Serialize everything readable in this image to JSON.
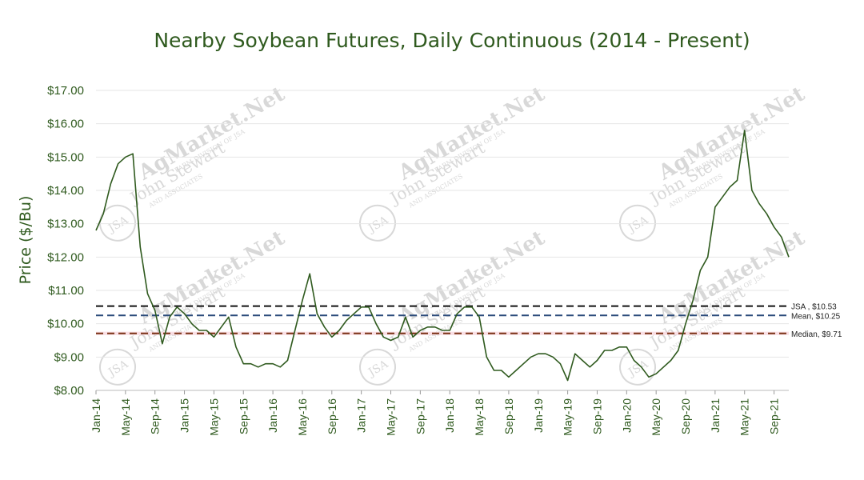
{
  "colors": {
    "title": "#2f5a1e",
    "line": "#2f5a1e",
    "grid": "#e6e6e6",
    "jsa": "#111111",
    "mean": "#2a4a7a",
    "median": "#7a3316",
    "median_band": "#f5c4cf",
    "watermark": "#d8d8d8"
  },
  "watermark": {
    "brand": "AgMarket.Net",
    "firm": "John Stewart",
    "firm_sub": "AND ASSOCIATES",
    "division": "FARM DIVISION OF JSA",
    "seal": "JSA"
  },
  "chart_data": {
    "type": "line",
    "title": "Nearby Soybean Futures, Daily Continuous (2014 - Present)",
    "xlabel": "",
    "ylabel": "Price ($/Bu)",
    "ylim": [
      8,
      17
    ],
    "y_ticks": [
      8,
      9,
      10,
      11,
      12,
      13,
      14,
      15,
      16,
      17
    ],
    "y_tick_labels": [
      "$8.00",
      "$9.00",
      "$10.00",
      "$11.00",
      "$12.00",
      "$13.00",
      "$14.00",
      "$15.00",
      "$16.00",
      "$17.00"
    ],
    "x_range": [
      "2014-01",
      "2021-11"
    ],
    "x_tick_labels": [
      "Jan-14",
      "May-14",
      "Sep-14",
      "Jan-15",
      "May-15",
      "Sep-15",
      "Jan-16",
      "May-16",
      "Sep-16",
      "Jan-17",
      "May-17",
      "Sep-17",
      "Jan-18",
      "May-18",
      "Sep-18",
      "Jan-19",
      "May-19",
      "Sep-19",
      "Jan-20",
      "May-20",
      "Sep-20",
      "Jan-21",
      "May-21",
      "Sep-21"
    ],
    "grid": "horizontal",
    "reference_lines": [
      {
        "label": "JSA , $10.53",
        "value": 10.53,
        "style": "dashed"
      },
      {
        "label": "Mean, $10.25",
        "value": 10.25,
        "style": "dashed"
      },
      {
        "label": "Median, $9.71",
        "value": 9.71,
        "style": "dashed"
      }
    ],
    "series": [
      {
        "x": [
          "2014-01",
          "2014-02",
          "2014-03",
          "2014-04",
          "2014-05",
          "2014-06",
          "2014-07",
          "2014-08",
          "2014-09",
          "2014-10",
          "2014-11",
          "2014-12",
          "2015-01",
          "2015-02",
          "2015-03",
          "2015-04",
          "2015-05",
          "2015-06",
          "2015-07",
          "2015-08",
          "2015-09",
          "2015-10",
          "2015-11",
          "2015-12",
          "2016-01",
          "2016-02",
          "2016-03",
          "2016-04",
          "2016-05",
          "2016-06",
          "2016-07",
          "2016-08",
          "2016-09",
          "2016-10",
          "2016-11",
          "2016-12",
          "2017-01",
          "2017-02",
          "2017-03",
          "2017-04",
          "2017-05",
          "2017-06",
          "2017-07",
          "2017-08",
          "2017-09",
          "2017-10",
          "2017-11",
          "2017-12",
          "2018-01",
          "2018-02",
          "2018-03",
          "2018-04",
          "2018-05",
          "2018-06",
          "2018-07",
          "2018-08",
          "2018-09",
          "2018-10",
          "2018-11",
          "2018-12",
          "2019-01",
          "2019-02",
          "2019-03",
          "2019-04",
          "2019-05",
          "2019-06",
          "2019-07",
          "2019-08",
          "2019-09",
          "2019-10",
          "2019-11",
          "2019-12",
          "2020-01",
          "2020-02",
          "2020-03",
          "2020-04",
          "2020-05",
          "2020-06",
          "2020-07",
          "2020-08",
          "2020-09",
          "2020-10",
          "2020-11",
          "2020-12",
          "2021-01",
          "2021-02",
          "2021-03",
          "2021-04",
          "2021-05",
          "2021-06",
          "2021-07",
          "2021-08",
          "2021-09",
          "2021-10",
          "2021-11"
        ],
        "values": [
          12.8,
          13.3,
          14.2,
          14.8,
          15.0,
          15.1,
          12.3,
          10.9,
          10.4,
          9.4,
          10.2,
          10.5,
          10.3,
          10.0,
          9.8,
          9.8,
          9.6,
          9.9,
          10.2,
          9.3,
          8.8,
          8.8,
          8.7,
          8.8,
          8.8,
          8.7,
          8.9,
          9.8,
          10.7,
          11.5,
          10.3,
          9.9,
          9.6,
          9.8,
          10.1,
          10.3,
          10.5,
          10.5,
          10.0,
          9.6,
          9.5,
          9.6,
          10.2,
          9.6,
          9.8,
          9.9,
          9.9,
          9.8,
          9.8,
          10.3,
          10.5,
          10.5,
          10.2,
          9.0,
          8.6,
          8.6,
          8.4,
          8.6,
          8.8,
          9.0,
          9.1,
          9.1,
          9.0,
          8.8,
          8.3,
          9.1,
          8.9,
          8.7,
          8.9,
          9.2,
          9.2,
          9.3,
          9.3,
          8.9,
          8.7,
          8.4,
          8.5,
          8.7,
          8.9,
          9.2,
          10.0,
          10.7,
          11.6,
          12.0,
          13.5,
          13.8,
          14.1,
          14.3,
          15.8,
          14.0,
          13.6,
          13.3,
          12.9,
          12.6,
          12.0
        ]
      }
    ]
  }
}
